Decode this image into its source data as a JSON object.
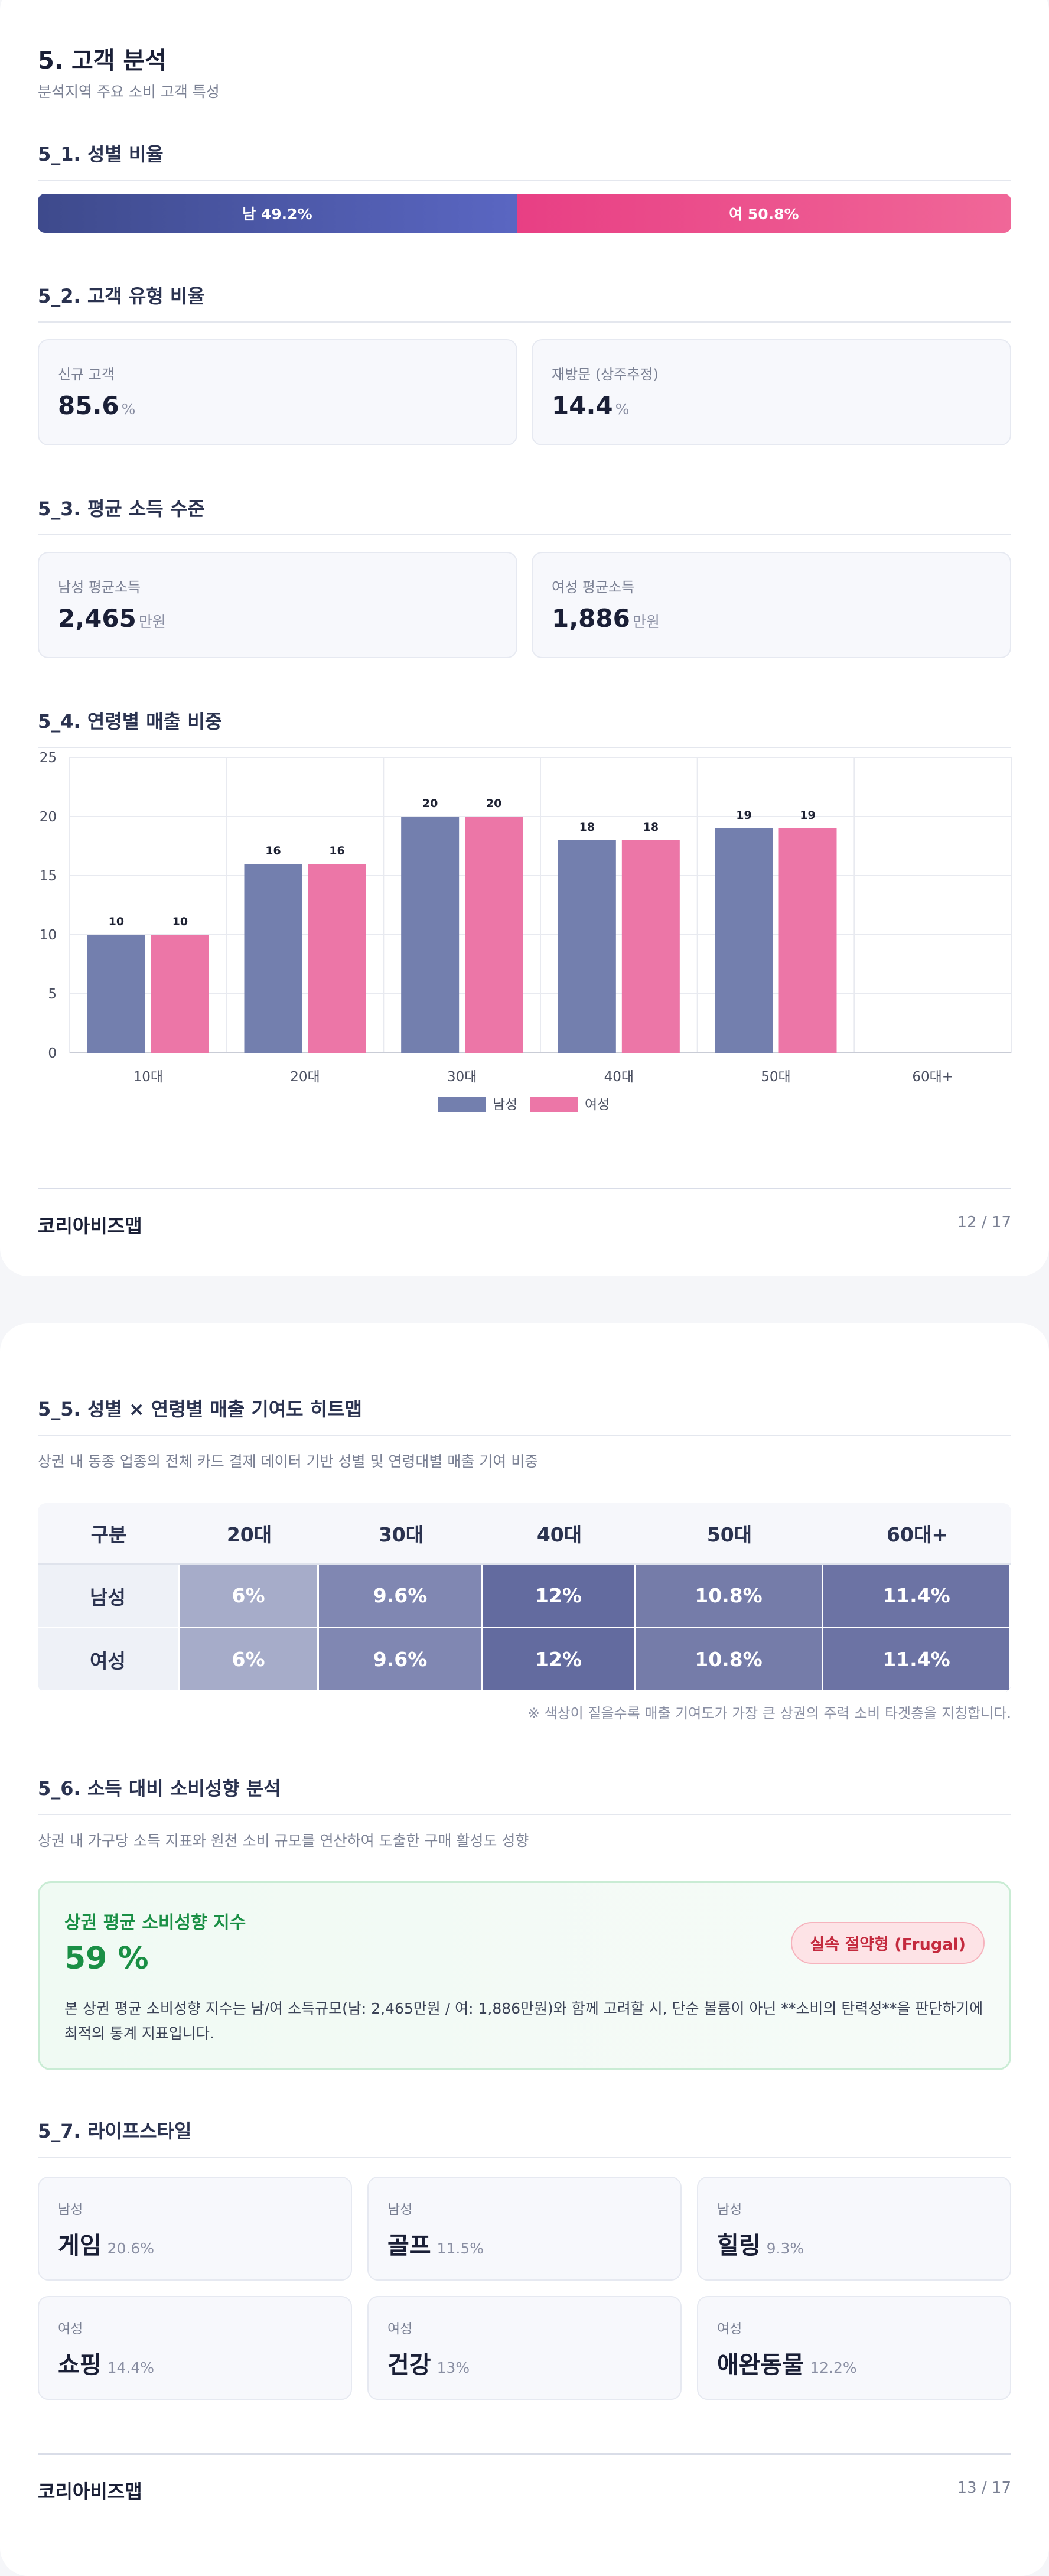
{
  "page1": {
    "title": "5. 고객 분석",
    "subtitle": "분석지역 주요 소비 고객 특성",
    "gender": {
      "heading": "5_1. 성별 비율",
      "male_label": "남 49.2%",
      "female_label": "여 50.8%",
      "male_pct": 49.2,
      "female_pct": 50.8,
      "male_color": "#4a56a6",
      "female_color": "#eb4c8a"
    },
    "customer_type": {
      "heading": "5_2. 고객 유형 비율",
      "new_label": "신규 고객",
      "new_value": "85.6",
      "new_unit": "%",
      "return_label": "재방문 (상주추정)",
      "return_value": "14.4",
      "return_unit": "%"
    },
    "income": {
      "heading": "5_3. 평균 소득 수준",
      "male_label": "남성 평균소득",
      "male_value": "2,465",
      "male_unit": "만원",
      "female_label": "여성 평균소득",
      "female_value": "1,886",
      "female_unit": "만원"
    },
    "age_sales": {
      "heading": "5_4. 연령별 매출 비중"
    },
    "footer": {
      "brand": "코리아비즈맵",
      "page": "12 / 17"
    }
  },
  "chart_data": {
    "type": "bar",
    "categories": [
      "10대",
      "20대",
      "30대",
      "40대",
      "50대",
      "60대+"
    ],
    "series": [
      {
        "name": "남성",
        "values": [
          10,
          16,
          20,
          18,
          19,
          null
        ],
        "color": "#737fae"
      },
      {
        "name": "여성",
        "values": [
          10,
          16,
          20,
          18,
          19,
          null
        ],
        "color": "#ec76a7"
      }
    ],
    "ylim": [
      0,
      25
    ],
    "yticks": [
      0,
      5,
      10,
      15,
      20,
      25
    ],
    "grid": true,
    "legend": "bottom-center",
    "data_labels": true
  },
  "page2": {
    "heatmap": {
      "heading": "5_5. 성별 × 연령별 매출 기여도 히트맵",
      "description": "상권 내 동종 업종의 전체 카드 결제 데이터 기반 성별 및 연령대별 매출 기여 비중",
      "columns": [
        "구분",
        "20대",
        "30대",
        "40대",
        "50대",
        "60대+"
      ],
      "rows": [
        {
          "label": "남성",
          "cells": [
            "6%",
            "9.6%",
            "12%",
            "10.8%",
            "11.4%"
          ]
        },
        {
          "label": "여성",
          "cells": [
            "6%",
            "9.6%",
            "12%",
            "10.8%",
            "11.4%"
          ]
        }
      ],
      "cell_colors": [
        "#a6acc9",
        "#8087b2",
        "#636b9f",
        "#757ca9",
        "#6c73a4"
      ],
      "note": "※ 색상이 짙을수록 매출 기여도가 가장 큰 상권의 주력 소비 타겟층을 지칭합니다."
    },
    "consumption": {
      "heading": "5_6. 소득 대비 소비성향 분석",
      "description": "상권 내 가구당 소득 지표와 원천 소비 규모를 연산하여 도출한 구매 활성도 성향",
      "box_title": "상권 평균 소비성향 지수",
      "value": "59 %",
      "badge": "실속 절약형 (Frugal)",
      "text": "본 상권 평균 소비성향 지수는 남/여 소득규모(남: 2,465만원 / 여: 1,886만원)와 함께 고려할 시, 단순 볼륨이 아닌 **소비의 탄력성**을 판단하기에 최적의 통계 지표입니다."
    },
    "lifestyle": {
      "heading": "5_7. 라이프스타일",
      "items": [
        {
          "gender": "남성",
          "name": "게임",
          "pct": "20.6%"
        },
        {
          "gender": "남성",
          "name": "골프",
          "pct": "11.5%"
        },
        {
          "gender": "남성",
          "name": "힐링",
          "pct": "9.3%"
        },
        {
          "gender": "여성",
          "name": "쇼핑",
          "pct": "14.4%"
        },
        {
          "gender": "여성",
          "name": "건강",
          "pct": "13%"
        },
        {
          "gender": "여성",
          "name": "애완동물",
          "pct": "12.2%"
        }
      ]
    },
    "footer": {
      "brand": "코리아비즈맵",
      "page": "13 / 17"
    }
  }
}
